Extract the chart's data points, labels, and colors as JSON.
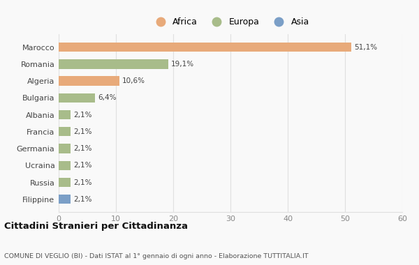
{
  "categories": [
    "Filippine",
    "Russia",
    "Ucraina",
    "Germania",
    "Francia",
    "Albania",
    "Bulgaria",
    "Algeria",
    "Romania",
    "Marocco"
  ],
  "values": [
    2.1,
    2.1,
    2.1,
    2.1,
    2.1,
    2.1,
    6.4,
    10.6,
    19.1,
    51.1
  ],
  "labels": [
    "2,1%",
    "2,1%",
    "2,1%",
    "2,1%",
    "2,1%",
    "2,1%",
    "6,4%",
    "10,6%",
    "19,1%",
    "51,1%"
  ],
  "colors": [
    "#7b9fc7",
    "#a8bc8a",
    "#a8bc8a",
    "#a8bc8a",
    "#a8bc8a",
    "#a8bc8a",
    "#a8bc8a",
    "#e8aa7a",
    "#a8bc8a",
    "#e8aa7a"
  ],
  "legend_labels": [
    "Africa",
    "Europa",
    "Asia"
  ],
  "legend_colors": [
    "#e8aa7a",
    "#a8bc8a",
    "#7b9fc7"
  ],
  "title": "Cittadini Stranieri per Cittadinanza",
  "subtitle": "COMUNE DI VEGLIO (BI) - Dati ISTAT al 1° gennaio di ogni anno - Elaborazione TUTTITALIA.IT",
  "xlim": [
    0,
    60
  ],
  "xticks": [
    0,
    10,
    20,
    30,
    40,
    50,
    60
  ],
  "bg_color": "#f9f9f9",
  "grid_color": "#e0e0e0",
  "bar_height": 0.55
}
